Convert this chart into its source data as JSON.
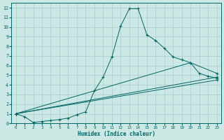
{
  "background_color": "#cce8e4",
  "grid_color": "#aacccc",
  "line_color": "#006666",
  "xlabel": "Humidex (Indice chaleur)",
  "xlim": [
    -0.5,
    23.5
  ],
  "ylim": [
    0,
    12.5
  ],
  "xticks": [
    0,
    1,
    2,
    3,
    4,
    5,
    6,
    7,
    8,
    9,
    10,
    11,
    12,
    13,
    14,
    15,
    16,
    17,
    18,
    19,
    20,
    21,
    22,
    23
  ],
  "yticks": [
    0,
    1,
    2,
    3,
    4,
    5,
    6,
    7,
    8,
    9,
    10,
    11,
    12
  ],
  "line1_x": [
    0,
    1,
    2,
    3,
    4,
    5,
    6,
    7,
    8,
    9,
    10,
    11,
    12,
    13,
    14,
    15,
    16,
    17,
    18,
    19,
    20,
    21,
    22,
    23
  ],
  "line1_y": [
    1.0,
    0.7,
    0.1,
    0.2,
    0.3,
    0.4,
    0.55,
    0.9,
    1.2,
    3.4,
    4.8,
    6.9,
    10.1,
    11.9,
    11.9,
    9.2,
    8.6,
    7.8,
    6.9,
    6.6,
    6.3,
    5.2,
    4.9,
    4.7
  ],
  "line2_x": [
    0,
    20,
    23
  ],
  "line2_y": [
    1.0,
    6.3,
    5.2
  ],
  "line3_x": [
    0,
    23
  ],
  "line3_y": [
    1.0,
    4.8
  ],
  "line4_x": [
    0,
    23
  ],
  "line4_y": [
    1.0,
    4.5
  ],
  "figsize": [
    3.2,
    2.0
  ],
  "dpi": 100
}
